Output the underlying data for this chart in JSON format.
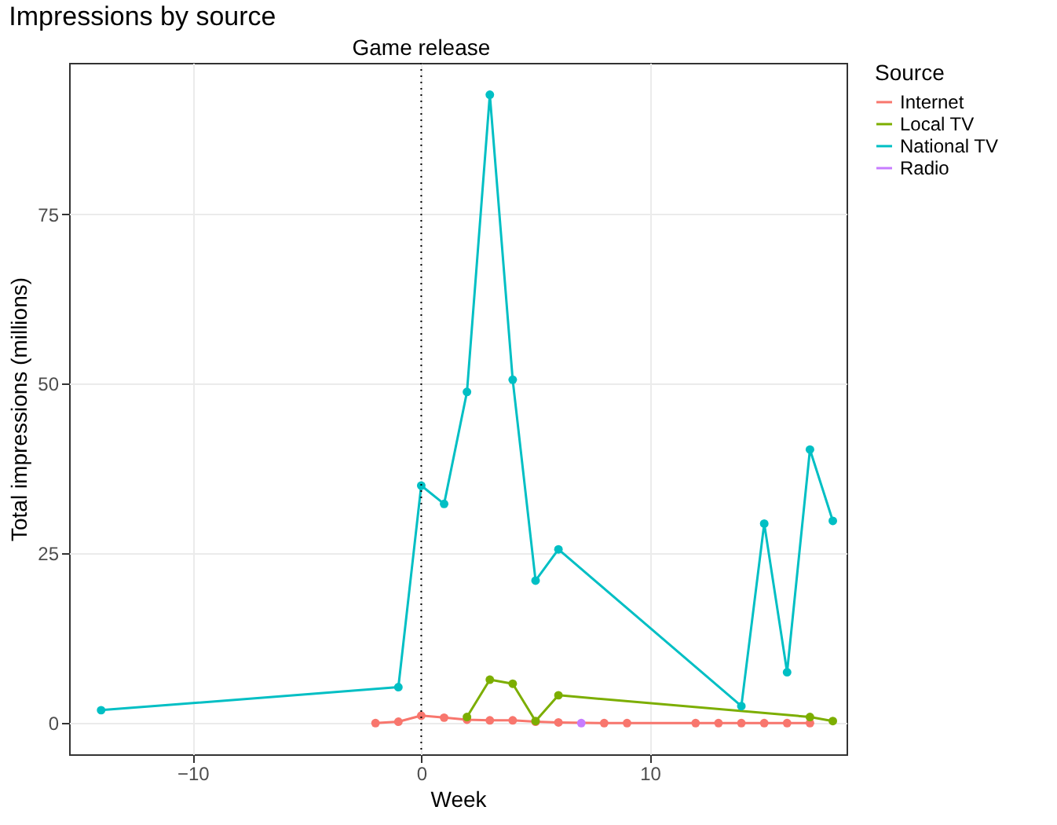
{
  "chart_data": {
    "type": "line",
    "title": "Impressions by source",
    "xlabel": "Week",
    "ylabel": "Total impressions (millions)",
    "legend_title": "Source",
    "xlim": [
      -15.4,
      18.6
    ],
    "xticks": [
      -10,
      0,
      10
    ],
    "ylim": [
      -4.6,
      97.3
    ],
    "yticks": [
      0,
      25,
      50,
      75
    ],
    "grid": true,
    "legend": "right",
    "marker": "circle",
    "line_style": "solid",
    "ref_lines": [
      {
        "axis": "x",
        "value": 0,
        "label": "Game release",
        "color": "#000000",
        "line_style": "dotted"
      }
    ],
    "series": [
      {
        "name": "Internet",
        "color": "#f8766d",
        "x": [
          -2,
          -1,
          0,
          1,
          2,
          3,
          4,
          5,
          6,
          8,
          9,
          12,
          13,
          14,
          15,
          16,
          17
        ],
        "values": [
          0,
          0.2,
          1.1,
          0.8,
          0.5,
          0.4,
          0.4,
          0.2,
          0.1,
          0,
          0,
          0,
          0,
          0,
          0,
          0,
          0
        ]
      },
      {
        "name": "Local TV",
        "color": "#7cae00",
        "x": [
          2,
          3,
          4,
          5,
          6,
          17,
          18
        ],
        "values": [
          0.9,
          6.4,
          5.8,
          0.3,
          4.1,
          0.9,
          0.3
        ]
      },
      {
        "name": "National TV",
        "color": "#00bfc4",
        "x": [
          -14,
          -1,
          0,
          1,
          2,
          3,
          4,
          5,
          6,
          14,
          15,
          16,
          17,
          18
        ],
        "values": [
          1.9,
          5.3,
          35,
          32.3,
          48.8,
          92.6,
          50.6,
          21,
          25.6,
          2.5,
          29.4,
          7.5,
          40.3,
          29.8
        ]
      },
      {
        "name": "Radio",
        "color": "#c77cff",
        "x": [
          7
        ],
        "values": [
          0
        ]
      }
    ]
  }
}
